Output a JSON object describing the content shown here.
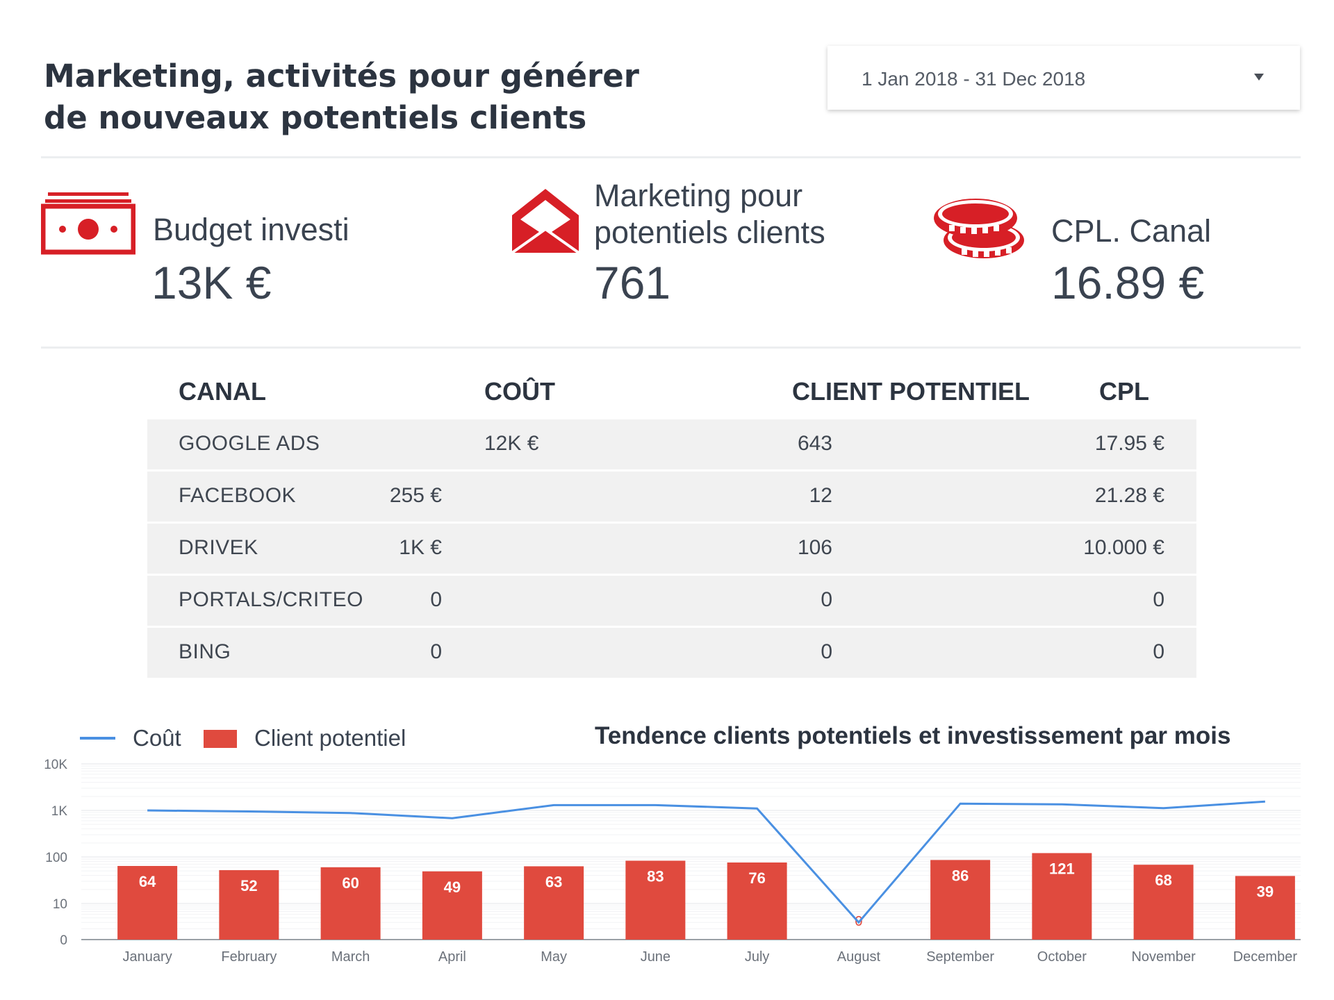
{
  "header": {
    "title_line1": "Marketing, activités pour générer",
    "title_line2": "de nouveaux potentiels clients",
    "date_range": "1 Jan 2018 - 31 Dec 2018"
  },
  "kpis": {
    "budget": {
      "label": "Budget investi",
      "value": "13K €",
      "icon": "banknote-icon"
    },
    "leads": {
      "label_line1": "Marketing pour",
      "label_line2": "potentiels clients",
      "value": "761",
      "icon": "envelope-icon"
    },
    "cpl": {
      "label": "CPL. Canal",
      "value": "16.89 €",
      "icon": "coins-icon"
    }
  },
  "accent_color": "#d71f26",
  "table": {
    "headers": {
      "canal": "CANAL",
      "cout": "COÛT",
      "client": "CLIENT POTENTIEL",
      "cpl": "CPL"
    },
    "rows": [
      {
        "canal": "GOOGLE ADS",
        "cout": "12K €",
        "client": "643",
        "cpl": "17.95 €"
      },
      {
        "canal": "FACEBOOK",
        "cout": "255 €",
        "client": "12",
        "cpl": "21.28  €"
      },
      {
        "canal": "DRIVEK",
        "cout": "1K €",
        "client": "106",
        "cpl": "10.000 €"
      },
      {
        "canal": "PORTALS/CRITEO",
        "cout": "0",
        "client": "0",
        "cpl": "0"
      },
      {
        "canal": "BING",
        "cout": "0",
        "client": "0",
        "cpl": "0"
      }
    ]
  },
  "legend": {
    "line_label": "Coût",
    "bar_label": "Client potentiel"
  },
  "chart_data": {
    "type": "bar",
    "title": "Tendence clients potentiels et investissement par mois",
    "categories": [
      "January",
      "February",
      "March",
      "April",
      "May",
      "June",
      "July",
      "August",
      "September",
      "October",
      "November",
      "December"
    ],
    "y_scale": "log",
    "y_ticks": [
      "10K",
      "1K",
      "100",
      "10",
      "0"
    ],
    "grid": true,
    "legend_position": "top-left",
    "series": [
      {
        "name": "Client potentiel",
        "type": "bar",
        "color": "#e04a3e",
        "values": [
          64,
          52,
          60,
          49,
          63,
          83,
          76,
          0,
          86,
          121,
          68,
          39
        ]
      },
      {
        "name": "Coût",
        "type": "line",
        "color": "#4a90e2",
        "values": [
          1000,
          950,
          880,
          680,
          1300,
          1300,
          1100,
          3,
          1400,
          1350,
          1120,
          1550
        ]
      }
    ]
  }
}
